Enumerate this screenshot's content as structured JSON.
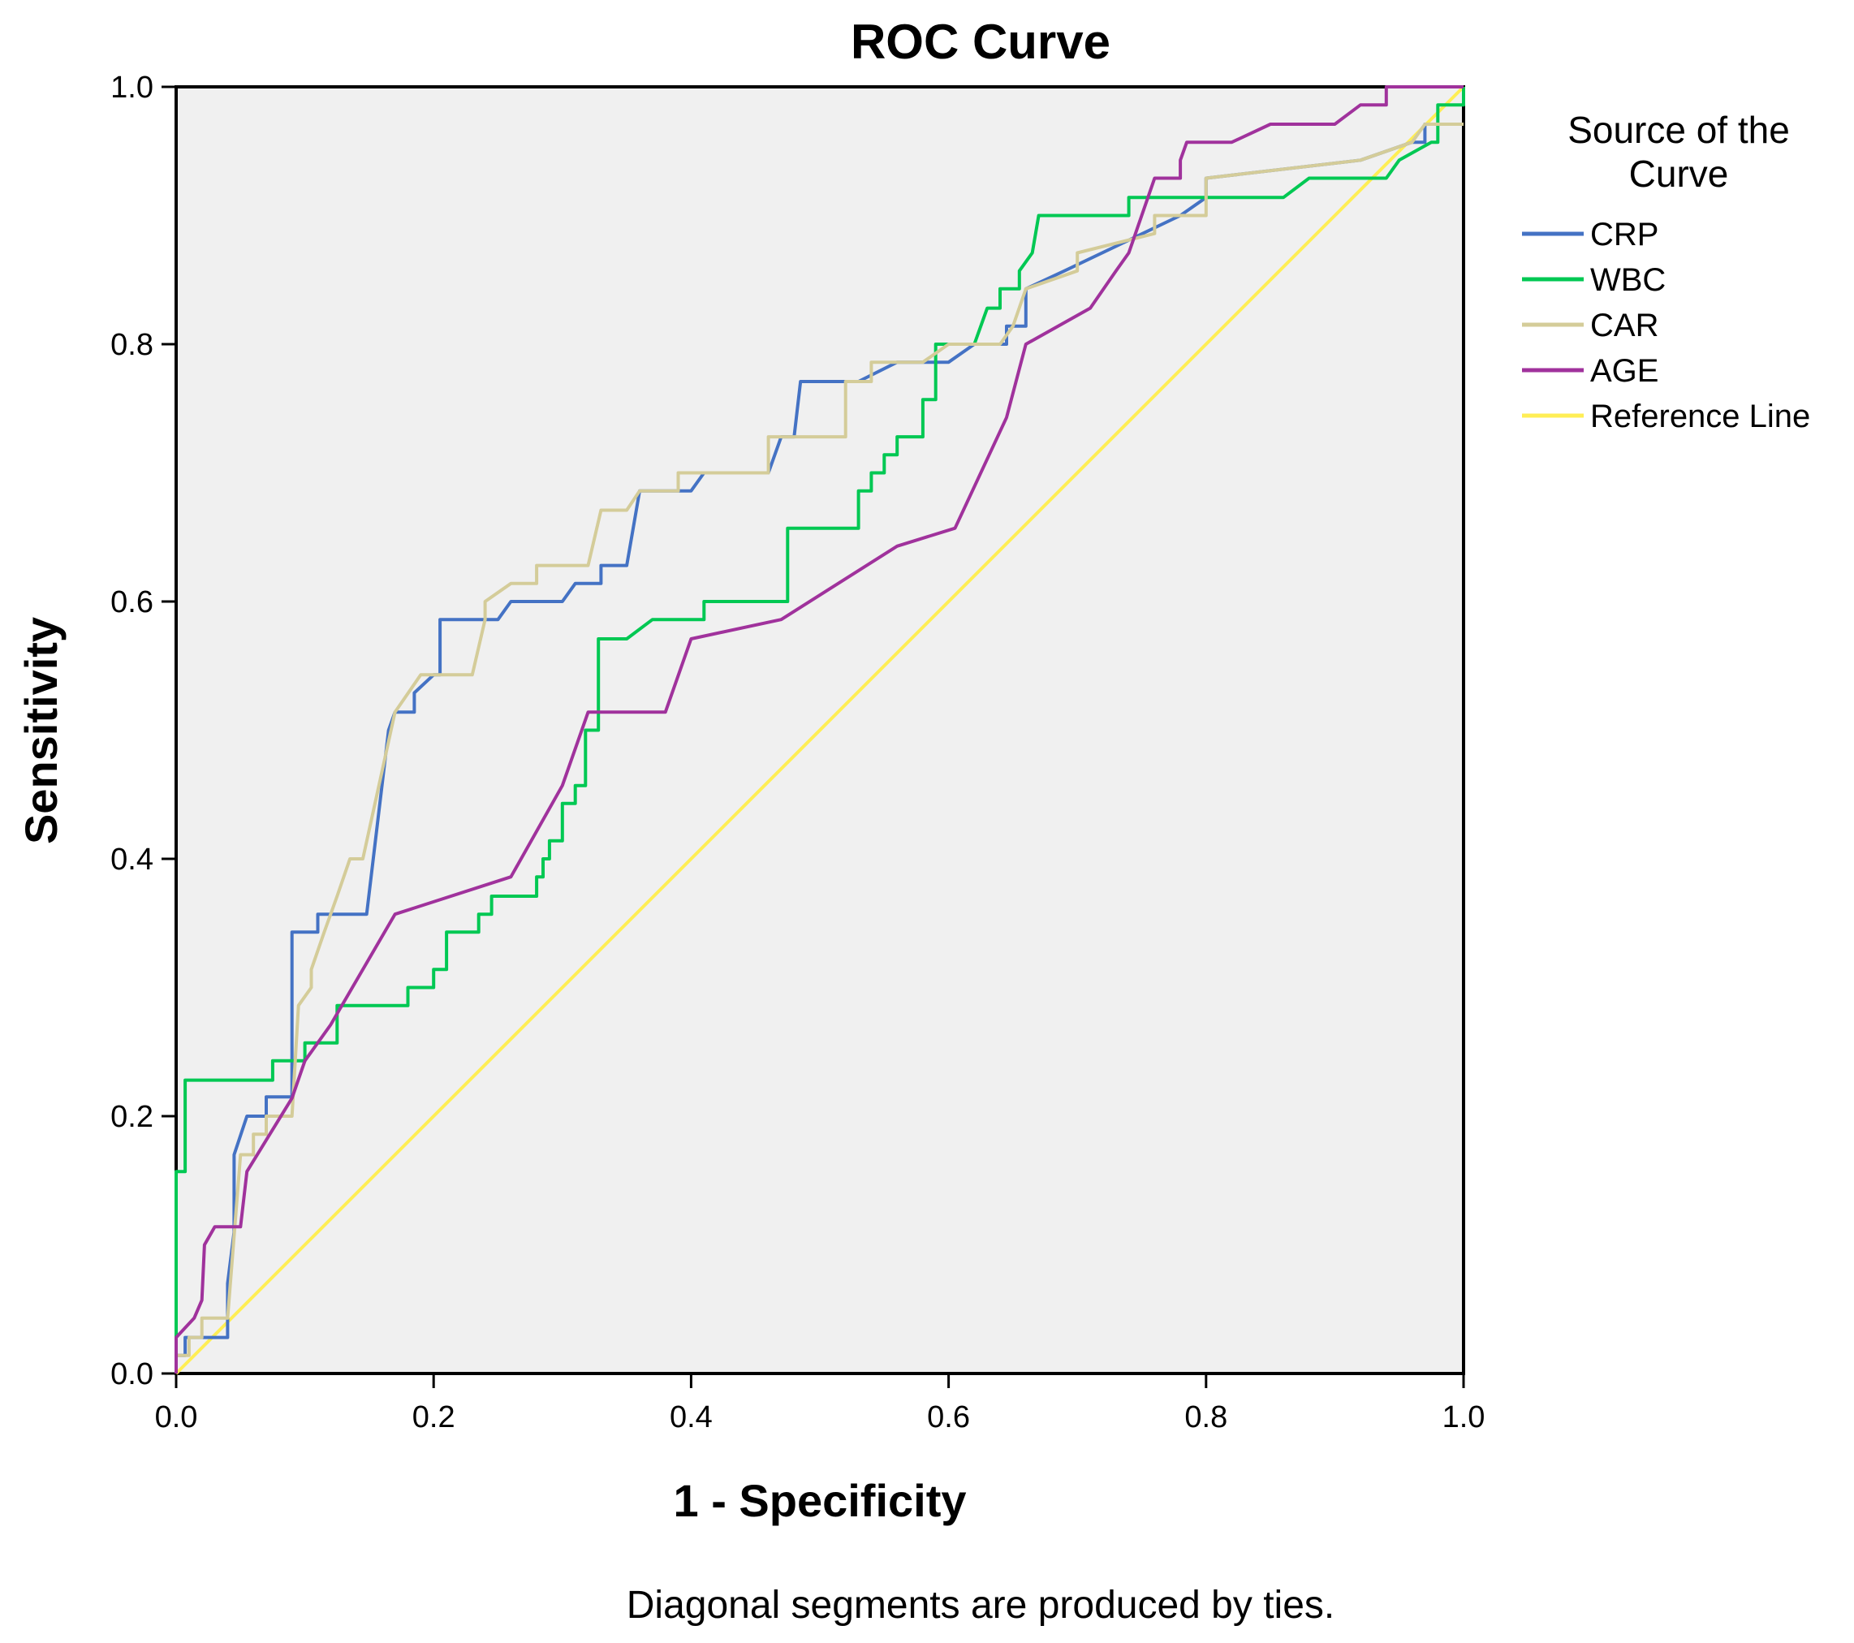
{
  "chart_data": {
    "type": "line",
    "title": "ROC Curve",
    "xlabel": "1 - Specificity",
    "ylabel": "Sensitivity",
    "xlim": [
      0,
      1
    ],
    "ylim": [
      0,
      1
    ],
    "xticks": [
      "0.0",
      "0.2",
      "0.4",
      "0.6",
      "0.8",
      "1.0"
    ],
    "yticks": [
      "0.0",
      "0.2",
      "0.4",
      "0.6",
      "0.8",
      "1.0"
    ],
    "grid": false,
    "plot_background": "#f0f0f0",
    "legend": {
      "title": "Source of the Curve",
      "title_lines": [
        "Source of the",
        "Curve"
      ],
      "placement": "right"
    },
    "footnote": "Diagonal segments are produced by ties.",
    "series": [
      {
        "name": "CRP",
        "color": "#4472c4",
        "points": [
          [
            0,
            0
          ],
          [
            0,
            0.014
          ],
          [
            0.007,
            0.014
          ],
          [
            0.007,
            0.028
          ],
          [
            0.04,
            0.028
          ],
          [
            0.04,
            0.07
          ],
          [
            0.045,
            0.11
          ],
          [
            0.045,
            0.17
          ],
          [
            0.055,
            0.2
          ],
          [
            0.07,
            0.2
          ],
          [
            0.07,
            0.215
          ],
          [
            0.09,
            0.215
          ],
          [
            0.09,
            0.343
          ],
          [
            0.11,
            0.343
          ],
          [
            0.11,
            0.357
          ],
          [
            0.148,
            0.357
          ],
          [
            0.165,
            0.5
          ],
          [
            0.17,
            0.514
          ],
          [
            0.185,
            0.514
          ],
          [
            0.185,
            0.529
          ],
          [
            0.2,
            0.543
          ],
          [
            0.205,
            0.543
          ],
          [
            0.205,
            0.586
          ],
          [
            0.25,
            0.586
          ],
          [
            0.26,
            0.6
          ],
          [
            0.3,
            0.6
          ],
          [
            0.31,
            0.614
          ],
          [
            0.33,
            0.614
          ],
          [
            0.33,
            0.628
          ],
          [
            0.35,
            0.628
          ],
          [
            0.36,
            0.686
          ],
          [
            0.4,
            0.686
          ],
          [
            0.41,
            0.7
          ],
          [
            0.46,
            0.7
          ],
          [
            0.47,
            0.728
          ],
          [
            0.48,
            0.728
          ],
          [
            0.485,
            0.771
          ],
          [
            0.53,
            0.771
          ],
          [
            0.56,
            0.786
          ],
          [
            0.6,
            0.786
          ],
          [
            0.62,
            0.8
          ],
          [
            0.645,
            0.8
          ],
          [
            0.645,
            0.814
          ],
          [
            0.66,
            0.814
          ],
          [
            0.66,
            0.843
          ],
          [
            0.69,
            0.857
          ],
          [
            0.78,
            0.9
          ],
          [
            0.8,
            0.914
          ],
          [
            0.8,
            0.929
          ],
          [
            0.92,
            0.943
          ],
          [
            0.96,
            0.957
          ],
          [
            0.97,
            0.957
          ],
          [
            0.97,
            0.971
          ],
          [
            1,
            0.971
          ]
        ]
      },
      {
        "name": "WBC",
        "color": "#00c853",
        "points": [
          [
            0,
            0
          ],
          [
            0,
            0.157
          ],
          [
            0.007,
            0.157
          ],
          [
            0.007,
            0.228
          ],
          [
            0.075,
            0.228
          ],
          [
            0.075,
            0.243
          ],
          [
            0.1,
            0.243
          ],
          [
            0.1,
            0.257
          ],
          [
            0.125,
            0.257
          ],
          [
            0.125,
            0.286
          ],
          [
            0.18,
            0.286
          ],
          [
            0.18,
            0.3
          ],
          [
            0.2,
            0.3
          ],
          [
            0.2,
            0.314
          ],
          [
            0.21,
            0.314
          ],
          [
            0.21,
            0.343
          ],
          [
            0.235,
            0.343
          ],
          [
            0.235,
            0.357
          ],
          [
            0.245,
            0.357
          ],
          [
            0.245,
            0.371
          ],
          [
            0.28,
            0.371
          ],
          [
            0.28,
            0.386
          ],
          [
            0.285,
            0.386
          ],
          [
            0.285,
            0.4
          ],
          [
            0.29,
            0.4
          ],
          [
            0.29,
            0.414
          ],
          [
            0.3,
            0.414
          ],
          [
            0.3,
            0.443
          ],
          [
            0.31,
            0.443
          ],
          [
            0.31,
            0.457
          ],
          [
            0.318,
            0.457
          ],
          [
            0.318,
            0.5
          ],
          [
            0.328,
            0.5
          ],
          [
            0.328,
            0.571
          ],
          [
            0.35,
            0.571
          ],
          [
            0.37,
            0.586
          ],
          [
            0.41,
            0.586
          ],
          [
            0.41,
            0.6
          ],
          [
            0.475,
            0.6
          ],
          [
            0.475,
            0.657
          ],
          [
            0.53,
            0.657
          ],
          [
            0.53,
            0.686
          ],
          [
            0.54,
            0.686
          ],
          [
            0.54,
            0.7
          ],
          [
            0.55,
            0.7
          ],
          [
            0.55,
            0.714
          ],
          [
            0.56,
            0.714
          ],
          [
            0.56,
            0.728
          ],
          [
            0.58,
            0.728
          ],
          [
            0.58,
            0.757
          ],
          [
            0.59,
            0.757
          ],
          [
            0.59,
            0.8
          ],
          [
            0.62,
            0.8
          ],
          [
            0.63,
            0.828
          ],
          [
            0.64,
            0.828
          ],
          [
            0.64,
            0.843
          ],
          [
            0.655,
            0.843
          ],
          [
            0.655,
            0.857
          ],
          [
            0.665,
            0.871
          ],
          [
            0.67,
            0.9
          ],
          [
            0.74,
            0.9
          ],
          [
            0.74,
            0.914
          ],
          [
            0.86,
            0.914
          ],
          [
            0.88,
            0.929
          ],
          [
            0.94,
            0.929
          ],
          [
            0.95,
            0.943
          ],
          [
            0.975,
            0.957
          ],
          [
            0.98,
            0.957
          ],
          [
            0.98,
            0.986
          ],
          [
            1,
            0.986
          ],
          [
            1,
            1
          ]
        ]
      },
      {
        "name": "CAR",
        "color": "#d4cc99",
        "points": [
          [
            0,
            0
          ],
          [
            0,
            0.014
          ],
          [
            0.01,
            0.014
          ],
          [
            0.01,
            0.028
          ],
          [
            0.02,
            0.028
          ],
          [
            0.02,
            0.043
          ],
          [
            0.04,
            0.043
          ],
          [
            0.05,
            0.17
          ],
          [
            0.06,
            0.17
          ],
          [
            0.06,
            0.186
          ],
          [
            0.07,
            0.186
          ],
          [
            0.07,
            0.2
          ],
          [
            0.09,
            0.2
          ],
          [
            0.095,
            0.286
          ],
          [
            0.105,
            0.3
          ],
          [
            0.105,
            0.314
          ],
          [
            0.115,
            0.343
          ],
          [
            0.125,
            0.371
          ],
          [
            0.135,
            0.4
          ],
          [
            0.145,
            0.4
          ],
          [
            0.17,
            0.514
          ],
          [
            0.19,
            0.543
          ],
          [
            0.23,
            0.543
          ],
          [
            0.24,
            0.586
          ],
          [
            0.24,
            0.6
          ],
          [
            0.26,
            0.614
          ],
          [
            0.28,
            0.614
          ],
          [
            0.28,
            0.628
          ],
          [
            0.32,
            0.628
          ],
          [
            0.33,
            0.671
          ],
          [
            0.35,
            0.671
          ],
          [
            0.36,
            0.686
          ],
          [
            0.39,
            0.686
          ],
          [
            0.39,
            0.7
          ],
          [
            0.46,
            0.7
          ],
          [
            0.46,
            0.728
          ],
          [
            0.52,
            0.728
          ],
          [
            0.52,
            0.771
          ],
          [
            0.54,
            0.771
          ],
          [
            0.54,
            0.786
          ],
          [
            0.58,
            0.786
          ],
          [
            0.6,
            0.8
          ],
          [
            0.64,
            0.8
          ],
          [
            0.65,
            0.814
          ],
          [
            0.66,
            0.843
          ],
          [
            0.7,
            0.857
          ],
          [
            0.7,
            0.871
          ],
          [
            0.76,
            0.886
          ],
          [
            0.76,
            0.9
          ],
          [
            0.8,
            0.9
          ],
          [
            0.8,
            0.929
          ],
          [
            0.92,
            0.943
          ],
          [
            0.96,
            0.957
          ],
          [
            0.97,
            0.971
          ],
          [
            1,
            0.971
          ]
        ]
      },
      {
        "name": "AGE",
        "color": "#a0329c",
        "points": [
          [
            0,
            0
          ],
          [
            0,
            0.028
          ],
          [
            0.014,
            0.043
          ],
          [
            0.02,
            0.057
          ],
          [
            0.022,
            0.1
          ],
          [
            0.03,
            0.114
          ],
          [
            0.05,
            0.114
          ],
          [
            0.055,
            0.157
          ],
          [
            0.09,
            0.214
          ],
          [
            0.1,
            0.243
          ],
          [
            0.12,
            0.271
          ],
          [
            0.17,
            0.357
          ],
          [
            0.26,
            0.386
          ],
          [
            0.3,
            0.457
          ],
          [
            0.32,
            0.514
          ],
          [
            0.38,
            0.514
          ],
          [
            0.4,
            0.571
          ],
          [
            0.47,
            0.586
          ],
          [
            0.56,
            0.643
          ],
          [
            0.605,
            0.657
          ],
          [
            0.645,
            0.743
          ],
          [
            0.66,
            0.8
          ],
          [
            0.71,
            0.828
          ],
          [
            0.73,
            0.857
          ],
          [
            0.74,
            0.871
          ],
          [
            0.76,
            0.929
          ],
          [
            0.78,
            0.929
          ],
          [
            0.78,
            0.943
          ],
          [
            0.785,
            0.957
          ],
          [
            0.82,
            0.957
          ],
          [
            0.85,
            0.971
          ],
          [
            0.9,
            0.971
          ],
          [
            0.92,
            0.986
          ],
          [
            0.94,
            0.986
          ],
          [
            0.94,
            1
          ],
          [
            1,
            1
          ]
        ]
      },
      {
        "name": "Reference Line",
        "color": "#ffee55",
        "points": [
          [
            0,
            0
          ],
          [
            1,
            1
          ]
        ]
      }
    ]
  }
}
